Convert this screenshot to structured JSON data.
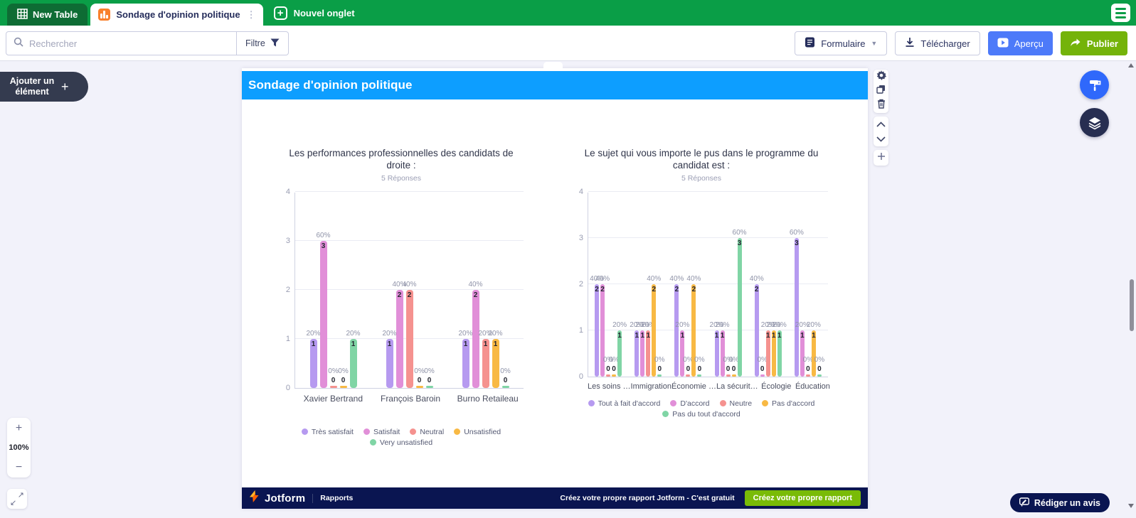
{
  "topbar": {
    "tabs": [
      {
        "label": "New Table"
      },
      {
        "label": "Sondage d'opinion politique"
      },
      {
        "label": "Nouvel onglet"
      }
    ]
  },
  "toolbar": {
    "search_placeholder": "Rechercher",
    "filter_label": "Filtre",
    "form_button": "Formulaire",
    "download_button": "Télécharger",
    "preview_button": "Aperçu",
    "publish_button": "Publier"
  },
  "canvas": {
    "add_element_label": "Ajouter un élément",
    "page_title": "Sondage d'opinion politique",
    "zoom_in": "+",
    "zoom_level": "100%",
    "zoom_out": "−"
  },
  "footer": {
    "brand": "Jotform",
    "section": "Rapports",
    "promo_text": "Créez votre propre rapport Jotform - C'est gratuit",
    "cta_button": "Créez votre propre rapport"
  },
  "review_button_label": "Rédiger un avis",
  "colors": {
    "topbar_green": "#0a9e47",
    "dark_tab_green": "#0e6c34",
    "band_blue": "#0d9eff",
    "preview_blue": "#4d7af9",
    "publish_green": "#74b30a",
    "footer_navy": "#0a1551",
    "cta_green": "#79bb07",
    "series_purple": "#b69af0",
    "series_pink": "#e18fd8",
    "series_salmon": "#f5928f",
    "series_orange": "#f8b944",
    "series_green": "#80d5a5"
  },
  "chart_data": [
    {
      "type": "bar",
      "title": "Les performances professionnelles des candidats de droite :",
      "subtitle": "5 Réponses",
      "categories": [
        "Xavier Bertrand",
        "François Baroin",
        "Burno Retaileau"
      ],
      "series": [
        {
          "name": "Très satisfait",
          "color": "#b69af0",
          "values": [
            1,
            1,
            1
          ],
          "pct": [
            "20%",
            "20%",
            "20%"
          ]
        },
        {
          "name": "Satisfait",
          "color": "#e18fd8",
          "values": [
            3,
            2,
            2
          ],
          "pct": [
            "60%",
            "40%",
            "40%"
          ]
        },
        {
          "name": "Neutral",
          "color": "#f5928f",
          "values": [
            0,
            2,
            1
          ],
          "pct": [
            "0%",
            "40%",
            "20%"
          ]
        },
        {
          "name": "Unsatisfied",
          "color": "#f8b944",
          "values": [
            0,
            0,
            1
          ],
          "pct": [
            "0%",
            "0%",
            "20%"
          ]
        },
        {
          "name": "Very unsatisfied",
          "color": "#80d5a5",
          "values": [
            1,
            0,
            0
          ],
          "pct": [
            "20%",
            "0%",
            "0%"
          ]
        }
      ],
      "ylim": [
        0,
        4
      ],
      "yticks": [
        0,
        1,
        2,
        3,
        4
      ],
      "grid": true,
      "legend_position": "bottom"
    },
    {
      "type": "bar",
      "title": "Le sujet qui vous importe le pus dans le programme du candidat est :",
      "subtitle": "5 Réponses",
      "categories": [
        "Les soins …",
        "Immigration",
        "Économie …",
        "La sécurit…",
        "Écologie",
        "Éducation"
      ],
      "series": [
        {
          "name": "Tout à fait d'accord",
          "color": "#b69af0",
          "values": [
            2,
            1,
            2,
            1,
            2,
            3
          ],
          "pct": [
            "40%",
            "20%",
            "40%",
            "20%",
            "40%",
            "60%"
          ]
        },
        {
          "name": "D'accord",
          "color": "#e18fd8",
          "values": [
            2,
            1,
            1,
            1,
            0,
            1
          ],
          "pct": [
            "40%",
            "20%",
            "20%",
            "20%",
            "0%",
            "20%"
          ]
        },
        {
          "name": "Neutre",
          "color": "#f5928f",
          "values": [
            0,
            1,
            0,
            0,
            1,
            0
          ],
          "pct": [
            "0%",
            "20%",
            "0%",
            "0%",
            "20%",
            "0%"
          ]
        },
        {
          "name": "Pas d'accord",
          "color": "#f8b944",
          "values": [
            0,
            2,
            2,
            0,
            1,
            1
          ],
          "pct": [
            "0%",
            "40%",
            "40%",
            "0%",
            "20%",
            "20%"
          ]
        },
        {
          "name": "Pas du tout d'accord",
          "color": "#80d5a5",
          "values": [
            1,
            0,
            0,
            3,
            1,
            0
          ],
          "pct": [
            "20%",
            "0%",
            "0%",
            "60%",
            "20%",
            "0%"
          ]
        }
      ],
      "ylim": [
        0,
        4
      ],
      "yticks": [
        0,
        1,
        2,
        3,
        4
      ],
      "grid": true,
      "legend_position": "bottom"
    }
  ]
}
